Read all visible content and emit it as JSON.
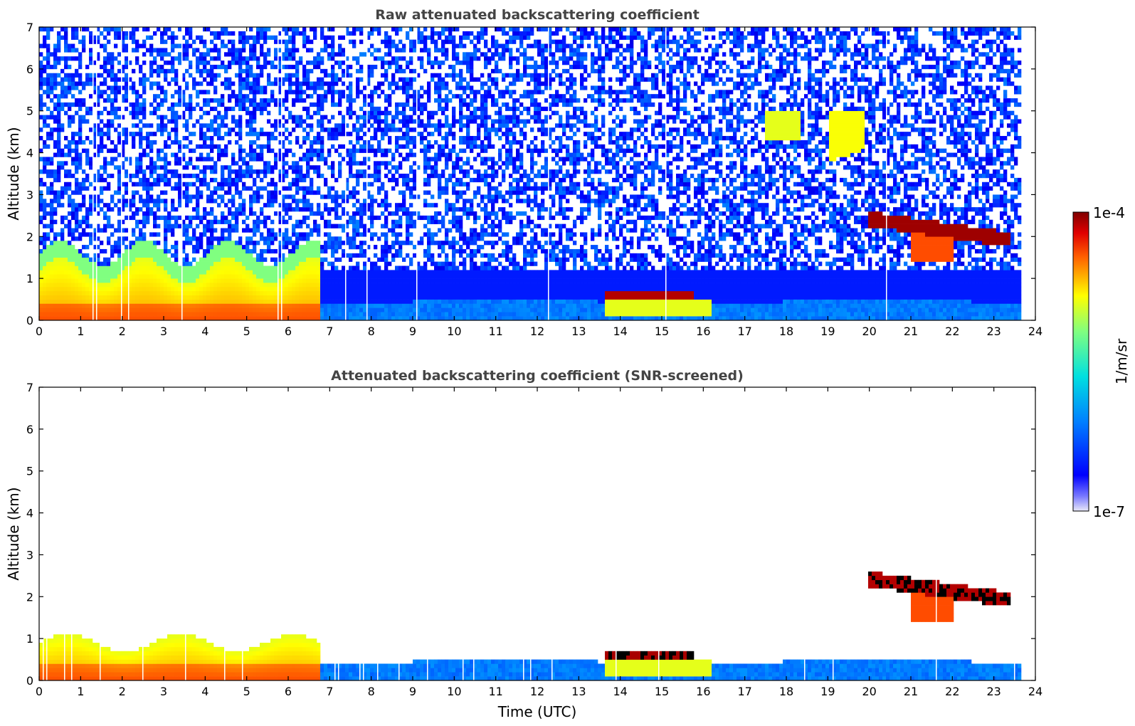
{
  "figure": {
    "colorbar": {
      "label": "1/m/sr",
      "max_label": "1e-4",
      "min_label": "1e-7",
      "scale": "log",
      "colormap": "jet"
    }
  },
  "chart_data": [
    {
      "type": "heatmap",
      "title": "Raw attenuated backscattering coefficient",
      "xlabel": "",
      "ylabel": "Altitude (km)",
      "xlim": [
        0,
        24
      ],
      "ylim": [
        0,
        7
      ],
      "xticks": [
        0,
        1,
        2,
        3,
        4,
        5,
        6,
        7,
        8,
        9,
        10,
        11,
        12,
        13,
        14,
        15,
        16,
        17,
        18,
        19,
        20,
        21,
        22,
        23,
        24
      ],
      "yticks": [
        0,
        1,
        2,
        3,
        4,
        5,
        6,
        7
      ],
      "data_end_time": 23.65,
      "noise_background": "blue speckle noise up to 7 km",
      "features": [
        {
          "name": "boundary layer aerosol",
          "x_range": [
            0,
            6.8
          ],
          "altitude_km": [
            0,
            1.5
          ],
          "intensity": "yellow-orange"
        },
        {
          "name": "residual layer",
          "x_range": [
            7,
            23.6
          ],
          "altitude_km": [
            0,
            0.6
          ],
          "intensity": "blue"
        },
        {
          "name": "low cloud",
          "x_range": [
            13.6,
            15.8
          ],
          "altitude_km": [
            0.5,
            0.7
          ],
          "intensity": "dark red"
        },
        {
          "name": "mid cloud",
          "x_range": [
            20,
            23.4
          ],
          "altitude_km": [
            2.0,
            2.6
          ],
          "intensity": "dark red"
        },
        {
          "name": "high cloud",
          "x_range": [
            19,
            19.9
          ],
          "altitude_km": [
            3.8,
            5.0
          ],
          "intensity": "yellow-green"
        },
        {
          "name": "high cloud",
          "x_range": [
            17.5,
            18.3
          ],
          "altitude_km": [
            4.3,
            5.0
          ],
          "intensity": "yellow-green"
        }
      ]
    },
    {
      "type": "heatmap",
      "title": "Attenuated backscattering coefficient (SNR-screened)",
      "xlabel": "Time (UTC)",
      "ylabel": "Altitude (km)",
      "xlim": [
        0,
        24
      ],
      "ylim": [
        0,
        7
      ],
      "xticks": [
        0,
        1,
        2,
        3,
        4,
        5,
        6,
        7,
        8,
        9,
        10,
        11,
        12,
        13,
        14,
        15,
        16,
        17,
        18,
        19,
        20,
        21,
        22,
        23,
        24
      ],
      "yticks": [
        0,
        1,
        2,
        3,
        4,
        5,
        6,
        7
      ],
      "data_end_time": 23.65,
      "features": [
        {
          "name": "boundary layer aerosol",
          "x_range": [
            0,
            6.6
          ],
          "altitude_km": [
            0,
            1.3
          ],
          "intensity": "yellow-orange"
        },
        {
          "name": "residual layer",
          "x_range": [
            6.6,
            23.6
          ],
          "altitude_km": [
            0,
            0.45
          ],
          "intensity": "blue"
        },
        {
          "name": "low cloud",
          "x_range": [
            13.6,
            15.8
          ],
          "altitude_km": [
            0.5,
            0.7
          ],
          "intensity": "black/dark red"
        },
        {
          "name": "mid cloud",
          "x_range": [
            20,
            23.4
          ],
          "altitude_km": [
            2.0,
            2.6
          ],
          "intensity": "black/dark red"
        }
      ]
    }
  ]
}
